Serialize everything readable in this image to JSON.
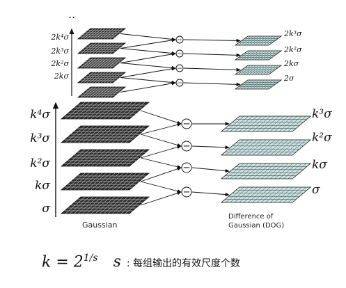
{
  "top_dots": "..",
  "small_gaussian_labels": [
    "2kσ",
    "2k²σ",
    "2k³σ",
    "2k⁴σ"
  ],
  "small_dog_labels": [
    "2σ",
    "2kσ",
    "2k²σ",
    "2k³σ"
  ],
  "large_gaussian_labels": [
    "σ",
    "kσ",
    "k²σ",
    "k³σ",
    "k⁴σ"
  ],
  "large_dog_labels": [
    "σ",
    "kσ",
    "k²σ",
    "k³σ"
  ],
  "minus_symbol": "−",
  "gaussian_caption": "Gaussian",
  "dog_caption_line1": "Difference of",
  "dog_caption_line2": "Gaussian (DOG)",
  "formula": {
    "lhs": "k = 2",
    "exponent": "1/s",
    "variable": "s",
    "description": ": 每组输出的有效尺度个数"
  },
  "colors": {
    "gaussian_fill": "#2b2b2b",
    "dog_fill": "#cfe3e3",
    "grid_line": "#ffffff",
    "dog_grid_line": "#1f3b3b"
  }
}
